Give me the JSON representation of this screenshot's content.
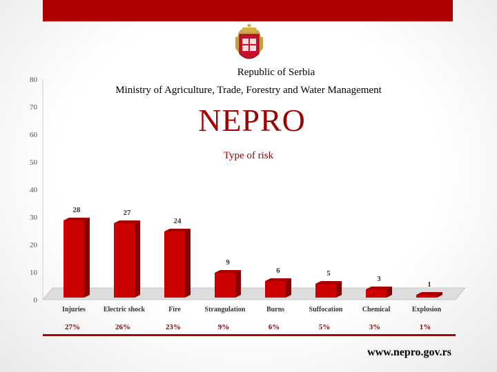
{
  "header": {
    "line1": "Republic of Serbia",
    "line2": "Ministry of Agriculture, Trade, Forestry and Water Management",
    "brand": "NEPRO",
    "subtitle": "Type of risk"
  },
  "footer": {
    "website": "www.nepro.gov.rs"
  },
  "colors": {
    "accent": "#b00000",
    "bar": "#cc0000",
    "bar_dark": "#8a0000",
    "bar_top": "#a30000"
  },
  "chart_data": {
    "type": "bar",
    "title": "Type of risk",
    "categories": [
      "Injuries",
      "Electric shock",
      "Fire",
      "Strangulation",
      "Burns",
      "Suffocation",
      "Chemical",
      "Explosion"
    ],
    "values": [
      28,
      27,
      24,
      9,
      6,
      5,
      3,
      1
    ],
    "percentages": [
      "27%",
      "26%",
      "23%",
      "9%",
      "6%",
      "5%",
      "3%",
      "1%"
    ],
    "yticks": [
      "0",
      "10",
      "20",
      "30",
      "40",
      "50",
      "60",
      "70",
      "80"
    ],
    "ylim": [
      0,
      80
    ],
    "grid": false,
    "legend": "none"
  }
}
